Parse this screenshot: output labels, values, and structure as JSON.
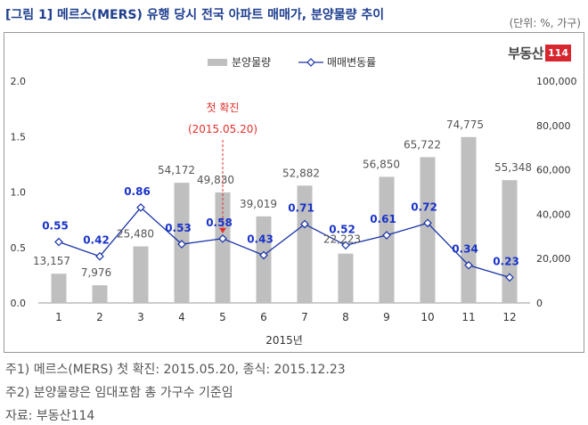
{
  "figure": {
    "title": "[그림 1] 메르스(MERS) 유행 당시 전국 아파트 매매가, 분양물량 추이",
    "unit": "(단위: %, 가구)",
    "logo_text": "부동산",
    "logo_number": "114"
  },
  "notes": [
    "주1) 메르스(MERS) 첫 확진: 2015.05.20, 종식: 2015.12.23",
    "주2) 분양물량은 임대포함 총 가구수 기준임",
    "자료: 부동산114"
  ],
  "annotation": {
    "label": "첫 확진",
    "date": "(2015.05.20)",
    "at_month": 5,
    "color": "#e0312a"
  },
  "colors": {
    "bar": "#bfbfbf",
    "line": "#1a33a8",
    "line_label": "#1a33c8",
    "bar_label": "#555555",
    "axis_text": "#333333",
    "gridline": "#cccccc"
  },
  "chart_data": {
    "type": "bar+line",
    "categories": [
      "1",
      "2",
      "3",
      "4",
      "5",
      "6",
      "7",
      "8",
      "9",
      "10",
      "11",
      "12"
    ],
    "xlabel": "2015년",
    "series": [
      {
        "name": "분양물량",
        "type": "bar",
        "axis": "right",
        "values": [
          13157,
          7976,
          25480,
          54172,
          49830,
          39019,
          52882,
          22223,
          56850,
          65722,
          74775,
          55348
        ],
        "labels": [
          "13,157",
          "7,976",
          "25,480",
          "54,172",
          "49,830",
          "39,019",
          "52,882",
          "22,223",
          "56,850",
          "65,722",
          "74,775",
          "55,348"
        ]
      },
      {
        "name": "매매변동률",
        "type": "line",
        "axis": "left",
        "values": [
          0.55,
          0.42,
          0.86,
          0.53,
          0.58,
          0.43,
          0.71,
          0.52,
          0.61,
          0.72,
          0.34,
          0.23
        ],
        "labels": [
          "0.55",
          "0.42",
          "0.86",
          "0.53",
          "0.58",
          "0.43",
          "0.71",
          "0.52",
          "0.61",
          "0.72",
          "0.34",
          "0.23"
        ]
      }
    ],
    "left_axis": {
      "ylim": [
        0,
        2.0
      ],
      "ticks": [
        "0.0",
        "0.5",
        "1.0",
        "1.5",
        "2.0"
      ]
    },
    "right_axis": {
      "ylim": [
        0,
        100000
      ],
      "ticks": [
        "0",
        "20,000",
        "40,000",
        "60,000",
        "80,000",
        "100,000"
      ]
    },
    "legend_position": "top"
  }
}
